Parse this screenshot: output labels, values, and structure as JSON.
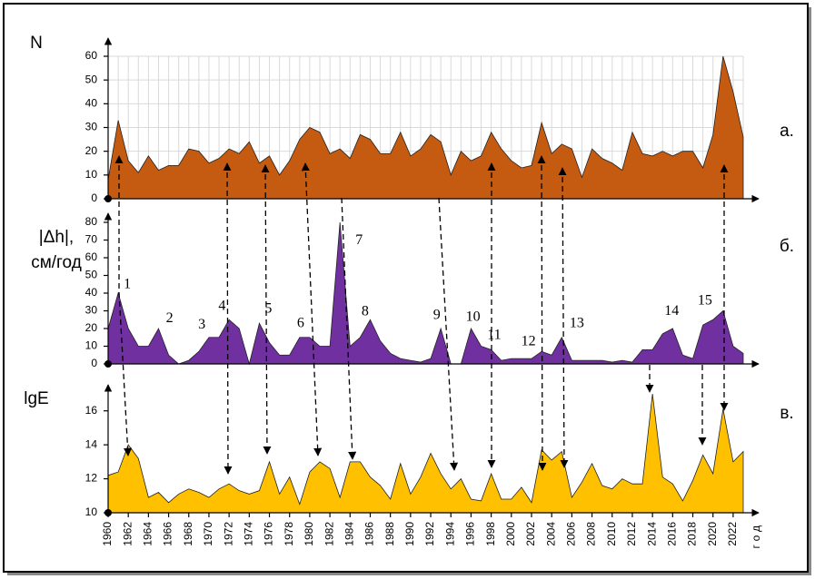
{
  "chart_data": [
    {
      "type": "area",
      "ylabel": [
        "N"
      ],
      "panel_label": "а.",
      "color": "#c55a11",
      "grid": true,
      "ylim": [
        0,
        60
      ],
      "yticks": [
        0,
        10,
        20,
        30,
        40,
        50,
        60
      ],
      "xlim": [
        1960,
        2023
      ],
      "x": [
        1960,
        1961,
        1962,
        1963,
        1964,
        1965,
        1966,
        1967,
        1968,
        1969,
        1970,
        1971,
        1972,
        1973,
        1974,
        1975,
        1976,
        1977,
        1978,
        1979,
        1980,
        1981,
        1982,
        1983,
        1984,
        1985,
        1986,
        1987,
        1988,
        1989,
        1990,
        1991,
        1992,
        1993,
        1994,
        1995,
        1996,
        1997,
        1998,
        1999,
        2000,
        2001,
        2002,
        2003,
        2004,
        2005,
        2006,
        2007,
        2008,
        2009,
        2010,
        2011,
        2012,
        2013,
        2014,
        2015,
        2016,
        2017,
        2018,
        2019,
        2020,
        2021,
        2022,
        2023
      ],
      "values": [
        8,
        33,
        16,
        11,
        18,
        12,
        14,
        14,
        21,
        20,
        15,
        17,
        21,
        19,
        24,
        15,
        18,
        10,
        16,
        25,
        30,
        28,
        19,
        21,
        17,
        27,
        25,
        19,
        19,
        28,
        18,
        21,
        27,
        24,
        10,
        20,
        16,
        18,
        28,
        21,
        16,
        13,
        14,
        32,
        19,
        23,
        21,
        9,
        21,
        17,
        15,
        12,
        28,
        19,
        18,
        20,
        18,
        20,
        20,
        13,
        27,
        60,
        45,
        26
      ]
    },
    {
      "type": "area",
      "ylabel": [
        "|Δh|,",
        "см/год"
      ],
      "panel_label": "б.",
      "color": "#7030a0",
      "grid": false,
      "ylim": [
        0,
        80
      ],
      "yticks": [
        0,
        10,
        20,
        30,
        40,
        50,
        60,
        70,
        80
      ],
      "xlim": [
        1960,
        2023
      ],
      "x": [
        1960,
        1961,
        1962,
        1963,
        1964,
        1965,
        1966,
        1967,
        1968,
        1969,
        1970,
        1971,
        1972,
        1973,
        1974,
        1975,
        1976,
        1977,
        1978,
        1979,
        1980,
        1981,
        1982,
        1983,
        1984,
        1985,
        1986,
        1987,
        1988,
        1989,
        1990,
        1991,
        1992,
        1993,
        1994,
        1995,
        1996,
        1997,
        1998,
        1999,
        2000,
        2001,
        2002,
        2003,
        2004,
        2005,
        2006,
        2007,
        2008,
        2009,
        2010,
        2011,
        2012,
        2013,
        2014,
        2015,
        2016,
        2017,
        2018,
        2019,
        2020,
        2021,
        2022,
        2023
      ],
      "values": [
        20,
        40,
        20,
        10,
        10,
        20,
        5,
        0,
        2,
        7,
        15,
        15,
        25,
        20,
        0,
        23,
        12,
        5,
        5,
        15,
        15,
        10,
        10,
        80,
        10,
        15,
        25,
        13,
        6,
        3,
        2,
        1,
        3,
        20,
        0,
        0,
        20,
        10,
        8,
        2,
        3,
        3,
        3,
        7,
        5,
        15,
        2,
        2,
        2,
        2,
        1,
        2,
        1,
        8,
        8,
        17,
        20,
        5,
        3,
        22,
        25,
        30,
        10,
        6
      ],
      "annotations": [
        {
          "text": "1",
          "x": 1961.9,
          "y": 44.6
        },
        {
          "text": "2",
          "x": 1966.1,
          "y": 25.6
        },
        {
          "text": "3",
          "x": 1969.3,
          "y": 22
        },
        {
          "text": "4",
          "x": 1971.3,
          "y": 32.3
        },
        {
          "text": "5",
          "x": 1975.9,
          "y": 30.8
        },
        {
          "text": "6",
          "x": 1979.1,
          "y": 22.6
        },
        {
          "text": "7",
          "x": 1984.9,
          "y": 69.7
        },
        {
          "text": "8",
          "x": 1985.5,
          "y": 29.2
        },
        {
          "text": "9",
          "x": 1992.6,
          "y": 27.2
        },
        {
          "text": "10",
          "x": 1996.2,
          "y": 26.2
        },
        {
          "text": "11",
          "x": 1998.3,
          "y": 15.9
        },
        {
          "text": "12",
          "x": 2001.7,
          "y": 12.3
        },
        {
          "text": "13",
          "x": 2006.5,
          "y": 22.6
        },
        {
          "text": "14",
          "x": 2015.9,
          "y": 29.7
        },
        {
          "text": "15",
          "x": 2019.2,
          "y": 35.4
        }
      ]
    },
    {
      "type": "area",
      "ylabel": [
        "lgE"
      ],
      "panel_label": "в.",
      "color": "#ffc000",
      "grid": false,
      "ylim": [
        10,
        17
      ],
      "yticks": [
        10,
        12,
        14,
        16
      ],
      "xlim": [
        1960,
        2023
      ],
      "x": [
        1960,
        1961,
        1962,
        1963,
        1964,
        1965,
        1966,
        1967,
        1968,
        1969,
        1970,
        1971,
        1972,
        1973,
        1974,
        1975,
        1976,
        1977,
        1978,
        1979,
        1980,
        1981,
        1982,
        1983,
        1984,
        1985,
        1986,
        1987,
        1988,
        1989,
        1990,
        1991,
        1992,
        1993,
        1994,
        1995,
        1996,
        1997,
        1998,
        1999,
        2000,
        2001,
        2002,
        2003,
        2004,
        2005,
        2006,
        2007,
        2008,
        2009,
        2010,
        2011,
        2012,
        2013,
        2014,
        2015,
        2016,
        2017,
        2018,
        2019,
        2020,
        2021,
        2022,
        2023
      ],
      "values": [
        12.2,
        12.4,
        14,
        13.2,
        10.9,
        11.2,
        10.6,
        11.1,
        11.4,
        11.2,
        10.9,
        11.4,
        11.7,
        11.3,
        11.1,
        11.3,
        13,
        11.1,
        12.1,
        10.5,
        12.4,
        13,
        12.6,
        10.9,
        13,
        13,
        12.1,
        11.6,
        10.8,
        12.9,
        11.1,
        12.1,
        13.5,
        12.3,
        11.4,
        12,
        10.8,
        10.7,
        12.3,
        10.8,
        10.8,
        11.5,
        10.6,
        13.7,
        13.1,
        13.6,
        10.9,
        11.8,
        12.9,
        11.6,
        11.4,
        12,
        11.7,
        11.7,
        17,
        12.1,
        11.7,
        10.7,
        11.9,
        13.4,
        12.3,
        16.1,
        13,
        13.6
      ],
      "xticks": [
        1960,
        1962,
        1964,
        1966,
        1968,
        1970,
        1972,
        1974,
        1976,
        1978,
        1980,
        1982,
        1984,
        1986,
        1988,
        1990,
        1992,
        1994,
        1996,
        1998,
        2000,
        2002,
        2004,
        2006,
        2008,
        2010,
        2012,
        2014,
        2016,
        2018,
        2020,
        2022
      ],
      "xlabel": "год"
    }
  ]
}
